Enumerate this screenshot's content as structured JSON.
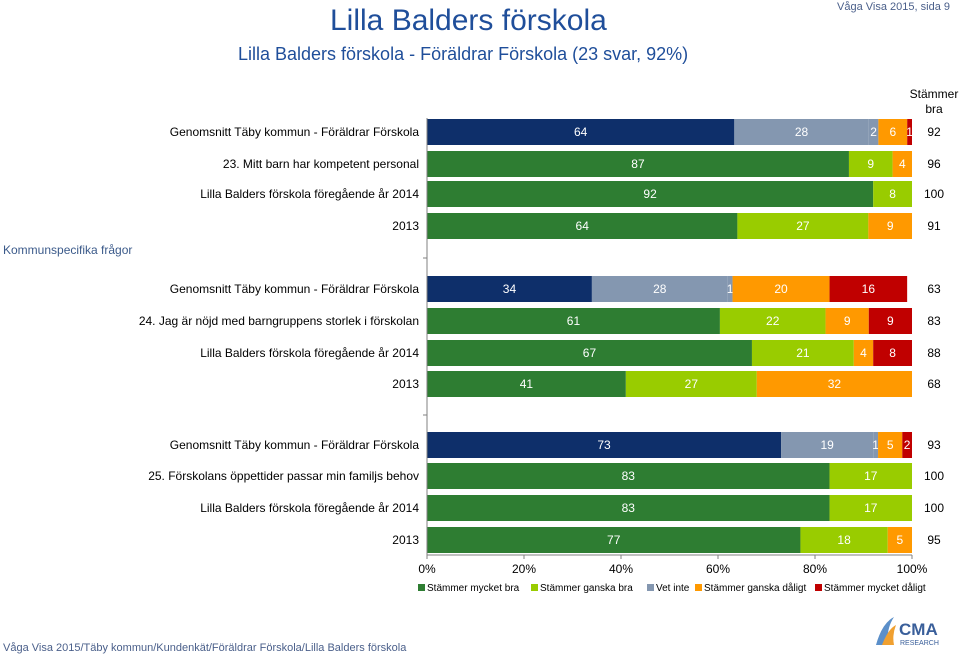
{
  "header": {
    "title": "Lilla Balders förskola",
    "subtitle": "Lilla Balders förskola - Föräldrar Förskola (23 svar, 92%)",
    "page_info": "Våga Visa 2015, sida 9",
    "score_column_header": "Stämmer bra"
  },
  "side_label": "Kommunspecifika frågor",
  "footer": "Våga Visa 2015/Täby kommun/Kundenkät/Föräldrar Förskola/Lilla Balders förskola",
  "logo": {
    "name": "CMA",
    "sub": "RESEARCH"
  },
  "colors": {
    "Stämmer mycket bra": "#2e7d32",
    "Stämmer ganska bra": "#99cc00",
    "Vet inte": "#8497b0",
    "Stämmer ganska dåligt": "#ff9900",
    "Stämmer mycket dåligt": "#c00000",
    "Genomsnitt": "#0e2f6a",
    "axis": "#808080"
  },
  "chart_data": {
    "type": "bar",
    "orientation": "horizontal-stacked-100",
    "xlim": [
      0,
      100
    ],
    "xticks": [
      "0%",
      "20%",
      "40%",
      "60%",
      "80%",
      "100%"
    ],
    "legend": [
      "Stämmer mycket bra",
      "Stämmer ganska bra",
      "Vet inte",
      "Stämmer ganska dåligt",
      "Stämmer mycket dåligt"
    ],
    "legend_position": "bottom",
    "groups": [
      {
        "question": "23. Mitt barn har kompetent personal",
        "rows": [
          {
            "label": "Genomsnitt Täby kommun - Föräldrar Förskola",
            "kind": "avg",
            "segments": [
              {
                "series": "Stämmer bra",
                "value": 64
              },
              {
                "series": "Vet inte",
                "value": 28
              },
              {
                "series": "Stämmer ganska dåligt",
                "value": 2
              },
              {
                "series": "Stämmer ganska dåligt",
                "value": 6
              },
              {
                "series": "Stämmer mycket dåligt",
                "value": 1
              }
            ],
            "total": "92"
          },
          {
            "label": "23. Mitt barn har kompetent personal",
            "kind": "question",
            "segments": [
              {
                "series": "Stämmer mycket bra",
                "value": 87
              },
              {
                "series": "Stämmer ganska bra",
                "value": 9
              },
              {
                "series": "Vet inte",
                "value": 0
              },
              {
                "series": "Stämmer ganska dåligt",
                "value": 4
              },
              {
                "series": "Stämmer mycket dåligt",
                "value": 0
              }
            ],
            "total": "96"
          },
          {
            "label": "Lilla Balders förskola föregående år 2014",
            "kind": "prev",
            "segments": [
              {
                "series": "Stämmer mycket bra",
                "value": 92
              },
              {
                "series": "Stämmer ganska bra",
                "value": 8
              },
              {
                "series": "Stämmer mycket dåligt",
                "value": 0
              }
            ],
            "total": "100"
          },
          {
            "label": "2013",
            "kind": "prev",
            "segments": [
              {
                "series": "Stämmer mycket bra",
                "value": 64
              },
              {
                "series": "Stämmer ganska bra",
                "value": 27
              },
              {
                "series": "Vet inte",
                "value": 0
              },
              {
                "series": "Stämmer ganska dåligt",
                "value": 9
              },
              {
                "series": "Stämmer mycket dåligt",
                "value": 0
              }
            ],
            "total": "91"
          }
        ]
      },
      {
        "question": "24. Jag är nöjd med barngruppens storlek i förskolan",
        "rows": [
          {
            "label": "Genomsnitt Täby kommun - Föräldrar Förskola",
            "kind": "avg",
            "segments": [
              {
                "series": "Stämmer bra",
                "value": 34
              },
              {
                "series": "Vet inte",
                "value": 28
              },
              {
                "series": "Vet inte",
                "value": 1
              },
              {
                "series": "Stämmer ganska dåligt",
                "value": 20
              },
              {
                "series": "Stämmer mycket dåligt",
                "value": 16
              }
            ],
            "total": "63"
          },
          {
            "label": "24. Jag är nöjd med barngruppens storlek i förskolan",
            "kind": "question",
            "segments": [
              {
                "series": "Stämmer mycket bra",
                "value": 61
              },
              {
                "series": "Stämmer ganska bra",
                "value": 22
              },
              {
                "series": "Vet inte",
                "value": 0
              },
              {
                "series": "Stämmer ganska dåligt",
                "value": 9
              },
              {
                "series": "Stämmer mycket dåligt",
                "value": 9
              }
            ],
            "total": "83"
          },
          {
            "label": "Lilla Balders förskola föregående år 2014",
            "kind": "prev",
            "segments": [
              {
                "series": "Stämmer mycket bra",
                "value": 67
              },
              {
                "series": "Stämmer ganska bra",
                "value": 21
              },
              {
                "series": "Vet inte",
                "value": 0
              },
              {
                "series": "Stämmer ganska dåligt",
                "value": 4
              },
              {
                "series": "Stämmer mycket dåligt",
                "value": 8
              }
            ],
            "total": "88"
          },
          {
            "label": "2013",
            "kind": "prev",
            "segments": [
              {
                "series": "Stämmer mycket bra",
                "value": 41
              },
              {
                "series": "Stämmer ganska bra",
                "value": 27
              },
              {
                "series": "Vet inte",
                "value": 0
              },
              {
                "series": "Stämmer ganska dåligt",
                "value": 32
              },
              {
                "series": "Stämmer mycket dåligt",
                "value": 0
              }
            ],
            "total": "68"
          }
        ]
      },
      {
        "question": "25. Förskolans öppettider passar min familjs behov",
        "rows": [
          {
            "label": "Genomsnitt Täby kommun - Föräldrar Förskola",
            "kind": "avg",
            "segments": [
              {
                "series": "Stämmer bra",
                "value": 73
              },
              {
                "series": "Vet inte",
                "value": 19
              },
              {
                "series": "Stämmer ganska dåligt",
                "value": 1
              },
              {
                "series": "Stämmer ganska dåligt",
                "value": 5
              },
              {
                "series": "Stämmer mycket dåligt",
                "value": 2
              }
            ],
            "total": "93"
          },
          {
            "label": "25. Förskolans öppettider passar min familjs behov",
            "kind": "question",
            "segments": [
              {
                "series": "Stämmer mycket bra",
                "value": 83
              },
              {
                "series": "Stämmer ganska bra",
                "value": 17
              },
              {
                "series": "Stämmer mycket dåligt",
                "value": 0
              }
            ],
            "total": "100"
          },
          {
            "label": "Lilla Balders förskola föregående år 2014",
            "kind": "prev",
            "segments": [
              {
                "series": "Stämmer mycket bra",
                "value": 83
              },
              {
                "series": "Stämmer ganska bra",
                "value": 17
              },
              {
                "series": "Stämmer mycket dåligt",
                "value": 0
              }
            ],
            "total": "100"
          },
          {
            "label": "2013",
            "kind": "prev",
            "segments": [
              {
                "series": "Stämmer mycket bra",
                "value": 77
              },
              {
                "series": "Stämmer ganska bra",
                "value": 18
              },
              {
                "series": "Vet inte",
                "value": 0
              },
              {
                "series": "Stämmer ganska dåligt",
                "value": 5
              }
            ],
            "total": "95"
          }
        ]
      }
    ]
  }
}
